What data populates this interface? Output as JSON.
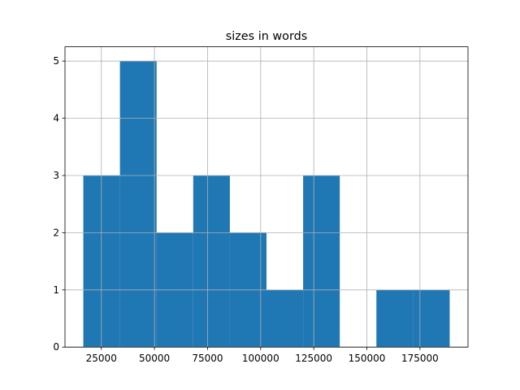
{
  "chart_data": {
    "type": "histogram",
    "title": "sizes in words",
    "bins": [
      16500,
      33750,
      51000,
      68250,
      85500,
      102750,
      120000,
      137250,
      154500,
      171750,
      189000
    ],
    "values": [
      3,
      5,
      2,
      3,
      2,
      1,
      3,
      0,
      1,
      1
    ],
    "color": "#1f77b4",
    "xlim": [
      7875,
      197625
    ],
    "xticks": [
      25000,
      50000,
      75000,
      100000,
      125000,
      150000,
      175000
    ],
    "ylim": [
      0,
      5.25
    ],
    "yticks": [
      0,
      1,
      2,
      3,
      4,
      5
    ],
    "grid": true
  }
}
